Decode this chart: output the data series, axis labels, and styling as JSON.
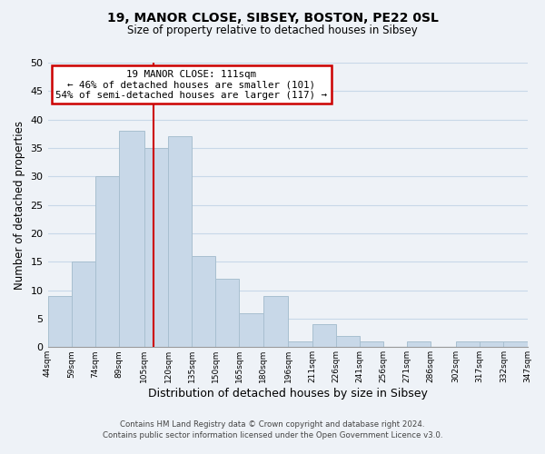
{
  "title_line1": "19, MANOR CLOSE, SIBSEY, BOSTON, PE22 0SL",
  "title_line2": "Size of property relative to detached houses in Sibsey",
  "xlabel": "Distribution of detached houses by size in Sibsey",
  "ylabel": "Number of detached properties",
  "bin_labels": [
    "44sqm",
    "59sqm",
    "74sqm",
    "89sqm",
    "105sqm",
    "120sqm",
    "135sqm",
    "150sqm",
    "165sqm",
    "180sqm",
    "196sqm",
    "211sqm",
    "226sqm",
    "241sqm",
    "256sqm",
    "271sqm",
    "286sqm",
    "302sqm",
    "317sqm",
    "332sqm",
    "347sqm"
  ],
  "bin_edges": [
    44,
    59,
    74,
    89,
    105,
    120,
    135,
    150,
    165,
    180,
    196,
    211,
    226,
    241,
    256,
    271,
    286,
    302,
    317,
    332,
    347
  ],
  "counts": [
    9,
    15,
    30,
    38,
    35,
    37,
    16,
    12,
    6,
    9,
    1,
    4,
    2,
    1,
    0,
    1,
    0,
    1,
    1,
    1
  ],
  "bar_color": "#c8d8e8",
  "bar_edge_color": "#a8bfd0",
  "vline_color": "#cc0000",
  "vline_x": 111,
  "annotation_title": "19 MANOR CLOSE: 111sqm",
  "annotation_line1": "← 46% of detached houses are smaller (101)",
  "annotation_line2": "54% of semi-detached houses are larger (117) →",
  "annotation_box_color": "#ffffff",
  "annotation_box_edge": "#cc0000",
  "ylim": [
    0,
    50
  ],
  "yticks": [
    0,
    5,
    10,
    15,
    20,
    25,
    30,
    35,
    40,
    45,
    50
  ],
  "grid_color": "#c8d8e8",
  "background_color": "#eef2f7",
  "footer_line1": "Contains HM Land Registry data © Crown copyright and database right 2024.",
  "footer_line2": "Contains public sector information licensed under the Open Government Licence v3.0."
}
